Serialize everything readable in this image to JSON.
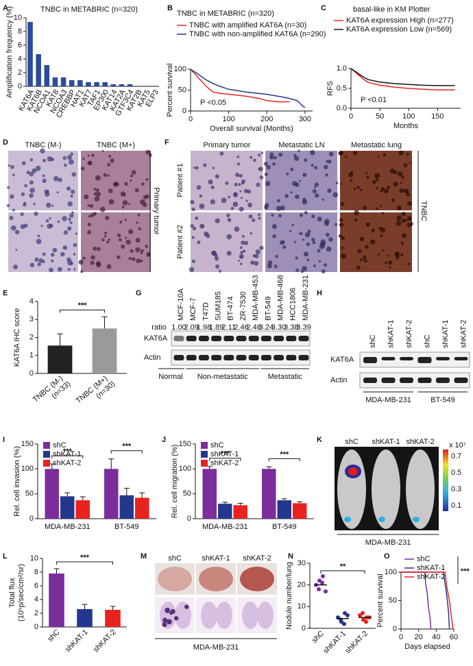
{
  "chart_data": [
    {
      "type": "bar",
      "title": "TNBC in METABRIC (n=320)",
      "ylabel": "Amplification frequency (%)",
      "categories": [
        "KAT6A",
        "KAT6B",
        "NCOA1",
        "KAT8",
        "NCOA3",
        "CREBBP",
        "HAT1",
        "KAT7",
        "TAF1",
        "EP300",
        "KAT14",
        "KAT2A",
        "GTF3C4",
        "KAT2B",
        "KAT5",
        "ELP3"
      ],
      "values": [
        9.4,
        4.7,
        3.1,
        1.3,
        1.3,
        0.9,
        0.9,
        0.6,
        0.6,
        0.6,
        0.3,
        0.3,
        0.3,
        0,
        0,
        0
      ],
      "color": "#2b4b9b",
      "ylim": [
        0,
        10
      ],
      "yticks": [
        0,
        2,
        4,
        6,
        8,
        10
      ]
    },
    {
      "type": "step",
      "title": "TNBC in METABRIC (n=320)",
      "xlabel": "Overall survival (Months)",
      "ylabel": "Percent survival",
      "annotation": "P <0.05",
      "xlim": [
        0,
        320
      ],
      "xticks": [
        0,
        100,
        200,
        300
      ],
      "ylim": [
        0,
        100
      ],
      "yticks": [
        0,
        50,
        100
      ],
      "series": [
        {
          "name": "TNBC with amplified KAT6A (n=30)",
          "color": "#e8231f",
          "x": [
            0,
            10,
            20,
            30,
            40,
            50,
            60,
            80,
            100,
            120,
            150,
            180,
            200,
            230,
            260
          ],
          "values": [
            100,
            90,
            80,
            70,
            60,
            52,
            45,
            42,
            40,
            38,
            35,
            30,
            25,
            22,
            22
          ]
        },
        {
          "name": "TNBC with non-amplified KAT6A (n=290)",
          "color": "#23378f",
          "x": [
            0,
            20,
            40,
            60,
            80,
            100,
            150,
            200,
            250,
            280,
            290,
            300
          ],
          "values": [
            100,
            88,
            75,
            65,
            58,
            52,
            45,
            40,
            32,
            25,
            15,
            8
          ]
        }
      ]
    },
    {
      "type": "step",
      "title": "basal-like in KM Plotter",
      "xlabel": "Months",
      "ylabel": "RFS",
      "annotation": "P <0.01",
      "xlim": [
        0,
        190
      ],
      "xticks": [
        0,
        50,
        100,
        150
      ],
      "ylim": [
        0,
        1
      ],
      "yticks": [
        {
          "value": 0,
          "label": "0.0"
        },
        {
          "value": 0.5,
          "label": "0.5"
        },
        {
          "value": 1,
          "label": "1.0"
        }
      ],
      "series": [
        {
          "name": "KAT6A expression High (n=277)",
          "color": "#e8231f",
          "x": [
            0,
            10,
            20,
            30,
            50,
            75,
            100,
            125,
            150,
            180
          ],
          "values": [
            1,
            0.88,
            0.75,
            0.65,
            0.58,
            0.53,
            0.5,
            0.48,
            0.46,
            0.46
          ]
        },
        {
          "name": "KAT6A expression Low (n=569)",
          "color": "#111111",
          "x": [
            0,
            10,
            20,
            30,
            50,
            75,
            100,
            125,
            150,
            180
          ],
          "values": [
            1,
            0.9,
            0.8,
            0.72,
            0.66,
            0.62,
            0.6,
            0.58,
            0.57,
            0.57
          ]
        }
      ]
    },
    {
      "type": "bar",
      "ylabel": "KAT6A IHC score",
      "categories": [
        "TNBC (M-)",
        "TNBC (M+)"
      ],
      "n_labels": [
        "(n=33)",
        "(n=30)"
      ],
      "values": [
        1.55,
        2.5
      ],
      "errors": [
        0.65,
        0.65
      ],
      "colors": [
        "#222222",
        "#9a9a9a"
      ],
      "ylim": [
        0,
        4
      ],
      "yticks": [
        0,
        1,
        2,
        3,
        4
      ],
      "significance": [
        "***"
      ]
    },
    {
      "type": "bar",
      "ylabel": "Rel. cell invasion (%)",
      "categories": [
        "MDA-MB-231",
        "BT-549"
      ],
      "series": [
        {
          "name": "shC",
          "color": "#7b2d9b",
          "values": [
            100,
            100
          ],
          "errors": [
            10,
            20
          ]
        },
        {
          "name": "shKAT-1",
          "color": "#23378f",
          "values": [
            45,
            47
          ],
          "errors": [
            7,
            14
          ]
        },
        {
          "name": "shKAT-2",
          "color": "#e8231f",
          "values": [
            37,
            42
          ],
          "errors": [
            7,
            10
          ]
        }
      ],
      "ylim": [
        0,
        150
      ],
      "yticks": [
        0,
        50,
        100,
        150
      ],
      "significance": [
        "***",
        "***"
      ]
    },
    {
      "type": "bar",
      "ylabel": "Rel. cell migration (%)",
      "categories": [
        "MDA-MB-231",
        "BT-549"
      ],
      "series": [
        {
          "name": "shC",
          "color": "#7b2d9b",
          "values": [
            100,
            100
          ],
          "errors": [
            5,
            4
          ]
        },
        {
          "name": "shKAT-1",
          "color": "#23378f",
          "values": [
            30,
            37
          ],
          "errors": [
            3,
            3
          ]
        },
        {
          "name": "shKAT-2",
          "color": "#e8231f",
          "values": [
            27,
            31
          ],
          "errors": [
            4,
            3
          ]
        }
      ],
      "ylim": [
        0,
        150
      ],
      "yticks": [
        0,
        50,
        100,
        150
      ],
      "significance": [
        "***",
        "***"
      ]
    },
    {
      "type": "bar",
      "ylabel": [
        "Total flux",
        "(10⁶p/sec/cm²/sr)"
      ],
      "categories": [
        "shC",
        "shKAT-1",
        "shKAT-2"
      ],
      "values": [
        7.8,
        2.6,
        2.5
      ],
      "errors": [
        0.7,
        0.7,
        0.5
      ],
      "colors": [
        "#7b2d9b",
        "#23378f",
        "#e8231f"
      ],
      "ylim": [
        0,
        10
      ],
      "yticks": [
        0,
        2,
        4,
        6,
        8,
        10
      ],
      "significance": [
        "***"
      ]
    },
    {
      "type": "strip",
      "ylabel": "Nodule number/lung",
      "categories": [
        "shC",
        "shKAT-1",
        "shKAT-2"
      ],
      "points": [
        [
          20,
          22,
          24,
          18,
          21,
          17
        ],
        [
          5,
          3,
          7,
          4,
          2,
          6
        ],
        [
          6,
          4,
          5,
          7,
          3,
          5
        ]
      ],
      "means": [
        20,
        4.5,
        5
      ],
      "colors": [
        "#7b2d9b",
        "#23378f",
        "#e8231f"
      ],
      "ylim": [
        0,
        30
      ],
      "yticks": [
        0,
        10,
        20,
        30
      ],
      "significance": [
        "**"
      ]
    },
    {
      "type": "step",
      "xlabel": "Days elapsed",
      "ylabel": "Percent survival",
      "xlim": [
        0,
        60
      ],
      "xticks": [
        0,
        20,
        40,
        60
      ],
      "ylim": [
        0,
        100
      ],
      "yticks": [
        0,
        50,
        100
      ],
      "significance": [
        "***"
      ],
      "series": [
        {
          "name": "shC",
          "color": "#7b2d9b",
          "x": [
            0,
            27,
            28,
            30,
            31,
            33,
            34
          ],
          "values": [
            100,
            100,
            80,
            60,
            40,
            20,
            0
          ]
        },
        {
          "name": "shKAT-1",
          "color": "#23378f",
          "x": [
            0,
            48,
            50,
            52,
            54,
            55
          ],
          "values": [
            100,
            100,
            80,
            60,
            30,
            0
          ]
        },
        {
          "name": "shKAT-2",
          "color": "#e8231f",
          "x": [
            0,
            50,
            52,
            55,
            57,
            59
          ],
          "values": [
            100,
            100,
            75,
            50,
            25,
            0
          ]
        }
      ]
    }
  ],
  "figure": {
    "panel_letters": [
      "A",
      "B",
      "C",
      "D",
      "E",
      "F",
      "G",
      "H",
      "I",
      "J",
      "K",
      "L",
      "M",
      "N",
      "O"
    ],
    "D": {
      "columns": [
        "TNBC (M-)",
        "TNBC (M+)"
      ],
      "side_label": "Primary tumor"
    },
    "F": {
      "columns": [
        "Primary tumor",
        "Metastatic LN",
        "Metastatic lung"
      ],
      "rows": [
        "Patient #1",
        "Patient #2"
      ],
      "side_label": "TNBC"
    },
    "G": {
      "cell_lines": [
        "MCF-10A",
        "MCF-7",
        "T47D",
        "SUM185",
        "BT-474",
        "ZR-7530",
        "MDA-MB-453",
        "BT-549",
        "MDA-MB-468",
        "HCC1806",
        "MDA-MB-231"
      ],
      "ratio_label": "ratio",
      "ratios": [
        "1.00",
        "2.09",
        "1.98",
        "1.89",
        "2.11",
        "2.46",
        "2.48",
        "3.24",
        "3.30",
        "3.38",
        "3.39"
      ],
      "bands": [
        "KAT6A",
        "Actin"
      ],
      "groups": [
        "Normal",
        "Non-metastatic",
        "Metastatic"
      ]
    },
    "H": {
      "lanes": [
        "shC",
        "shKAT-1",
        "shKAT-2",
        "shC",
        "shKAT-1",
        "shKAT-2"
      ],
      "bands": [
        "KAT6A",
        "Actin"
      ],
      "groups": [
        "MDA-MB-231",
        "BT-549"
      ]
    },
    "K": {
      "columns": [
        "shC",
        "shKAT-1",
        "shKAT-2"
      ],
      "cell_line": "MDA-MB-231",
      "scale_unit": "x 10⁷",
      "scale_ticks": [
        "0.7",
        "0.5",
        "0.3",
        "0.1"
      ]
    },
    "M": {
      "columns": [
        "shC",
        "shKAT-1",
        "shKAT-2"
      ],
      "cell_line": "MDA-MB-231"
    }
  }
}
